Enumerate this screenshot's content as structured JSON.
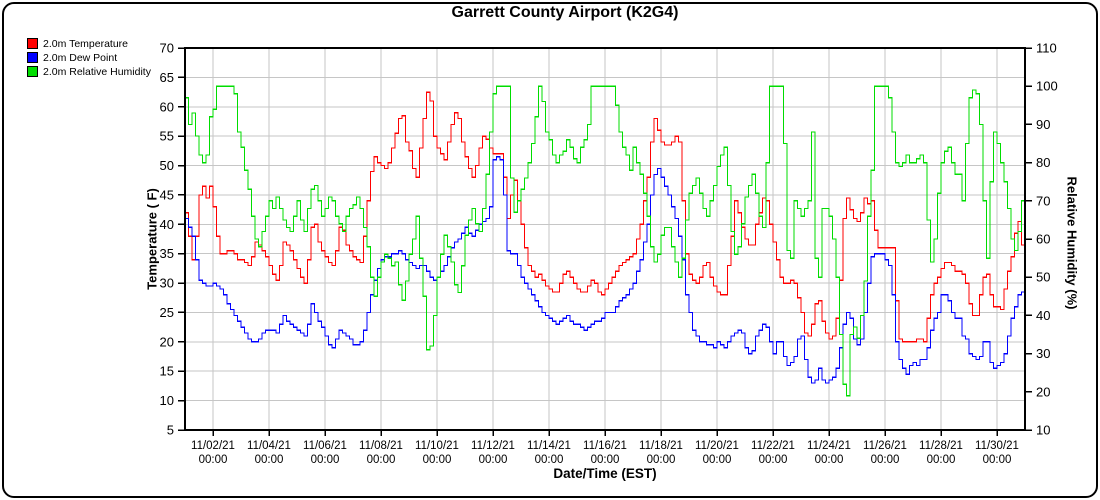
{
  "chart": {
    "title": "Garrett County Airport (K2G4)",
    "legend": [
      {
        "label": "2.0m Temperature",
        "color": "#ff0000"
      },
      {
        "label": "2.0m Dew Point",
        "color": "#0000ff"
      },
      {
        "label": "2.0m Relative Humidity",
        "color": "#00dd00"
      }
    ],
    "y_left": {
      "label": "Temperature ( F)",
      "min": 5,
      "max": 70,
      "step": 5
    },
    "y_right": {
      "label": "Relative Humidity (%)",
      "min": 10,
      "max": 110,
      "step": 10
    },
    "x_axis": {
      "label": "Date/Time (EST)",
      "tick_time": "00:00",
      "tick_dates": [
        "11/02/21",
        "11/04/21",
        "11/06/21",
        "11/08/21",
        "11/10/21",
        "11/12/21",
        "11/14/21",
        "11/16/21",
        "11/18/21",
        "11/20/21",
        "11/22/21",
        "11/24/21",
        "11/26/21",
        "11/28/21",
        "11/30/21"
      ]
    },
    "colors": {
      "grid": "#c6c6c6",
      "axis": "#000000",
      "background": "#ffffff"
    }
  },
  "chart_data": {
    "type": "line",
    "title": "Garrett County Airport (K2G4)",
    "xlabel": "Date/Time (EST)",
    "ylabel_left": "Temperature ( F)",
    "ylabel_right": "Relative Humidity (%)",
    "x_start": "11/01/21 00:00",
    "x_end": "12/01/21 00:00",
    "step_hours": 3,
    "ylim_left": [
      5,
      70
    ],
    "ylim_right": [
      10,
      110
    ],
    "grid": true,
    "legend_position": "top-left",
    "series": [
      {
        "name": "2.0m Temperature",
        "axis": "left",
        "color": "#ff0000",
        "values": [
          42,
          38,
          34,
          38,
          45,
          46.5,
          44.5,
          46.5,
          43,
          38,
          35,
          35,
          35.5,
          35.5,
          35,
          34,
          34,
          33.5,
          33,
          34.5,
          37,
          36.5,
          35.5,
          34.5,
          33,
          31.5,
          30.5,
          33,
          37,
          36.5,
          35.5,
          34,
          32.5,
          31,
          30,
          34,
          39.5,
          40,
          37,
          35.5,
          34.5,
          33.5,
          33,
          35.5,
          39.5,
          39,
          36.5,
          35.5,
          34.5,
          34,
          33.5,
          38,
          44,
          49,
          51.5,
          50.5,
          50,
          49.5,
          50.5,
          53,
          55.5,
          58,
          58.5,
          54,
          52.5,
          49.5,
          48,
          53,
          58,
          62.5,
          61,
          55,
          53,
          52,
          51,
          54,
          57,
          59,
          58,
          54,
          51.5,
          49.5,
          48,
          50,
          53,
          55,
          54.5,
          53,
          52,
          52,
          52,
          48,
          41,
          45,
          47.5,
          44,
          40,
          36,
          33,
          32,
          31,
          31.5,
          30.5,
          29.5,
          29,
          28.5,
          28.5,
          30,
          31.5,
          32,
          31,
          30,
          29,
          28.5,
          28.5,
          29.5,
          30.5,
          30,
          28.5,
          28,
          29,
          30,
          31,
          32,
          33,
          33.5,
          34,
          34.5,
          35,
          37.5,
          40,
          44,
          48,
          54,
          58,
          56,
          54,
          53.5,
          53.5,
          54,
          55,
          54,
          44,
          35,
          31.5,
          30.5,
          30,
          31,
          33,
          33.5,
          31,
          29.5,
          28.5,
          28,
          28,
          33,
          38,
          44,
          42,
          39.5,
          37.5,
          36.5,
          36.5,
          40,
          42,
          44.5,
          44,
          40,
          37,
          34,
          31,
          30,
          30,
          30.5,
          30,
          27.5,
          25,
          21.5,
          21,
          23,
          26.5,
          27,
          23.5,
          21.5,
          20.5,
          21,
          24,
          30.5,
          41,
          44.5,
          42.5,
          41,
          40.5,
          42,
          44.5,
          43.5,
          44,
          39,
          36,
          36,
          36,
          36,
          36,
          27,
          20.5,
          20,
          20,
          20,
          20,
          20.5,
          20.5,
          20,
          24,
          28,
          30,
          31,
          32.5,
          33.5,
          33.5,
          33,
          32,
          32,
          31.5,
          30,
          26.5,
          24.5,
          24.5,
          28,
          31,
          31.5,
          28,
          26,
          26,
          25.5,
          29,
          32,
          34.5,
          38.5,
          40.5,
          36.5,
          36.5
        ]
      },
      {
        "name": "2.0m Dew Point",
        "axis": "left",
        "color": "#0000ff",
        "values": [
          41,
          39.5,
          38,
          34,
          30.5,
          30,
          29.5,
          29.5,
          30,
          29.5,
          29,
          28,
          26.5,
          25.5,
          24.5,
          23.5,
          22.5,
          21.5,
          20.5,
          20,
          20,
          20.5,
          21.5,
          22,
          22,
          22,
          21.5,
          23,
          24.5,
          23.5,
          23,
          22.5,
          22,
          21.5,
          21,
          23,
          26.5,
          25,
          23.5,
          22.5,
          21,
          19.5,
          19,
          20.5,
          22,
          21.5,
          21,
          20.5,
          19.5,
          19.5,
          20,
          22,
          25,
          28,
          30.5,
          32.5,
          34,
          34.5,
          34.5,
          35,
          35,
          35.5,
          35,
          34,
          33.5,
          33,
          32.5,
          33,
          33,
          32,
          31,
          30.5,
          31,
          32,
          33,
          34.5,
          36,
          37,
          37.5,
          38.5,
          39.5,
          38.5,
          38,
          39,
          40,
          40.5,
          41,
          43,
          51,
          51.5,
          51,
          45,
          35.5,
          35,
          35,
          33,
          31,
          30,
          29,
          28,
          27,
          26,
          25,
          24.5,
          24,
          23.5,
          23,
          23.5,
          24,
          24.5,
          23.5,
          23,
          23,
          22.5,
          22,
          22.5,
          23,
          23.5,
          23.5,
          24,
          25,
          25,
          25,
          26,
          27,
          27.5,
          28,
          29,
          30,
          32,
          34,
          37,
          40,
          45,
          48.5,
          49.5,
          48,
          46.5,
          45,
          43,
          41,
          38,
          34,
          28,
          25,
          22,
          21,
          20,
          20,
          19.5,
          19.5,
          19,
          20,
          19.5,
          19,
          20,
          21,
          21.5,
          22,
          21.5,
          19,
          18,
          18.5,
          21,
          22,
          23,
          22.5,
          20,
          18,
          20,
          20,
          17.5,
          16,
          16.5,
          17.5,
          20.5,
          21,
          17,
          14,
          13,
          13.5,
          15.5,
          13.5,
          13,
          13.5,
          14,
          15.5,
          19,
          23,
          25,
          24,
          20.5,
          19.5,
          20.5,
          25,
          30,
          34.5,
          35,
          35,
          35,
          34,
          33,
          28,
          20,
          17,
          15.5,
          14.5,
          16,
          16.5,
          16,
          17,
          17,
          19,
          22,
          24,
          25,
          28,
          28,
          27,
          25,
          24,
          24,
          21,
          20.5,
          18,
          17.5,
          17,
          17.5,
          20,
          20,
          16.5,
          15.5,
          16,
          16.5,
          18,
          21,
          24,
          26,
          28,
          28.5,
          29.5
        ]
      },
      {
        "name": "2.0m Relative Humidity",
        "axis": "right",
        "color": "#00dd00",
        "values": [
          97,
          90,
          93,
          87,
          82,
          80,
          82,
          92,
          94,
          100,
          100,
          100,
          100,
          100,
          98,
          88,
          84,
          78,
          73,
          66,
          60,
          58,
          62,
          66,
          70,
          68,
          71,
          68,
          65,
          63,
          62,
          66,
          70,
          65,
          62,
          68,
          73,
          74,
          70,
          66,
          68,
          71,
          70,
          66,
          64,
          62,
          66,
          68,
          69,
          71,
          68,
          63,
          58,
          50,
          45,
          50,
          54,
          56,
          55,
          53,
          54,
          48,
          44,
          49,
          56,
          60,
          66,
          55,
          45,
          31,
          32,
          40,
          50,
          56,
          61,
          58,
          54,
          48,
          46,
          53,
          61,
          65,
          68,
          64,
          62,
          68,
          77,
          88,
          98,
          100,
          100,
          100,
          100,
          76,
          67,
          70,
          73,
          76,
          80,
          85,
          92,
          100,
          96,
          88,
          86,
          82,
          80,
          82,
          83,
          86,
          84,
          81,
          80,
          84,
          86,
          90,
          100,
          100,
          100,
          100,
          100,
          100,
          100,
          95,
          88,
          84,
          82,
          78,
          84,
          80,
          77,
          72,
          66,
          58,
          54,
          56,
          61,
          63,
          63,
          58,
          54,
          50,
          55,
          65,
          72,
          74,
          76,
          72,
          68,
          66,
          70,
          74,
          79,
          82,
          84,
          74,
          62,
          56,
          58,
          64,
          71,
          74,
          77,
          72,
          66,
          63,
          80,
          100,
          100,
          100,
          100,
          85,
          57,
          55,
          70,
          68,
          66,
          68,
          70,
          88,
          55,
          50,
          68,
          68,
          66,
          60,
          50,
          35,
          22,
          19,
          35,
          37,
          34,
          40,
          49,
          66,
          78,
          100,
          100,
          100,
          100,
          97,
          88,
          80,
          79,
          80,
          82,
          80,
          80,
          81,
          82,
          80,
          65,
          54,
          60,
          72,
          80,
          83,
          84,
          80,
          77,
          77,
          70,
          85,
          97,
          99,
          98,
          90,
          70,
          55,
          75,
          88,
          85,
          80,
          75,
          68,
          60,
          57,
          62,
          70,
          80
        ]
      }
    ]
  }
}
